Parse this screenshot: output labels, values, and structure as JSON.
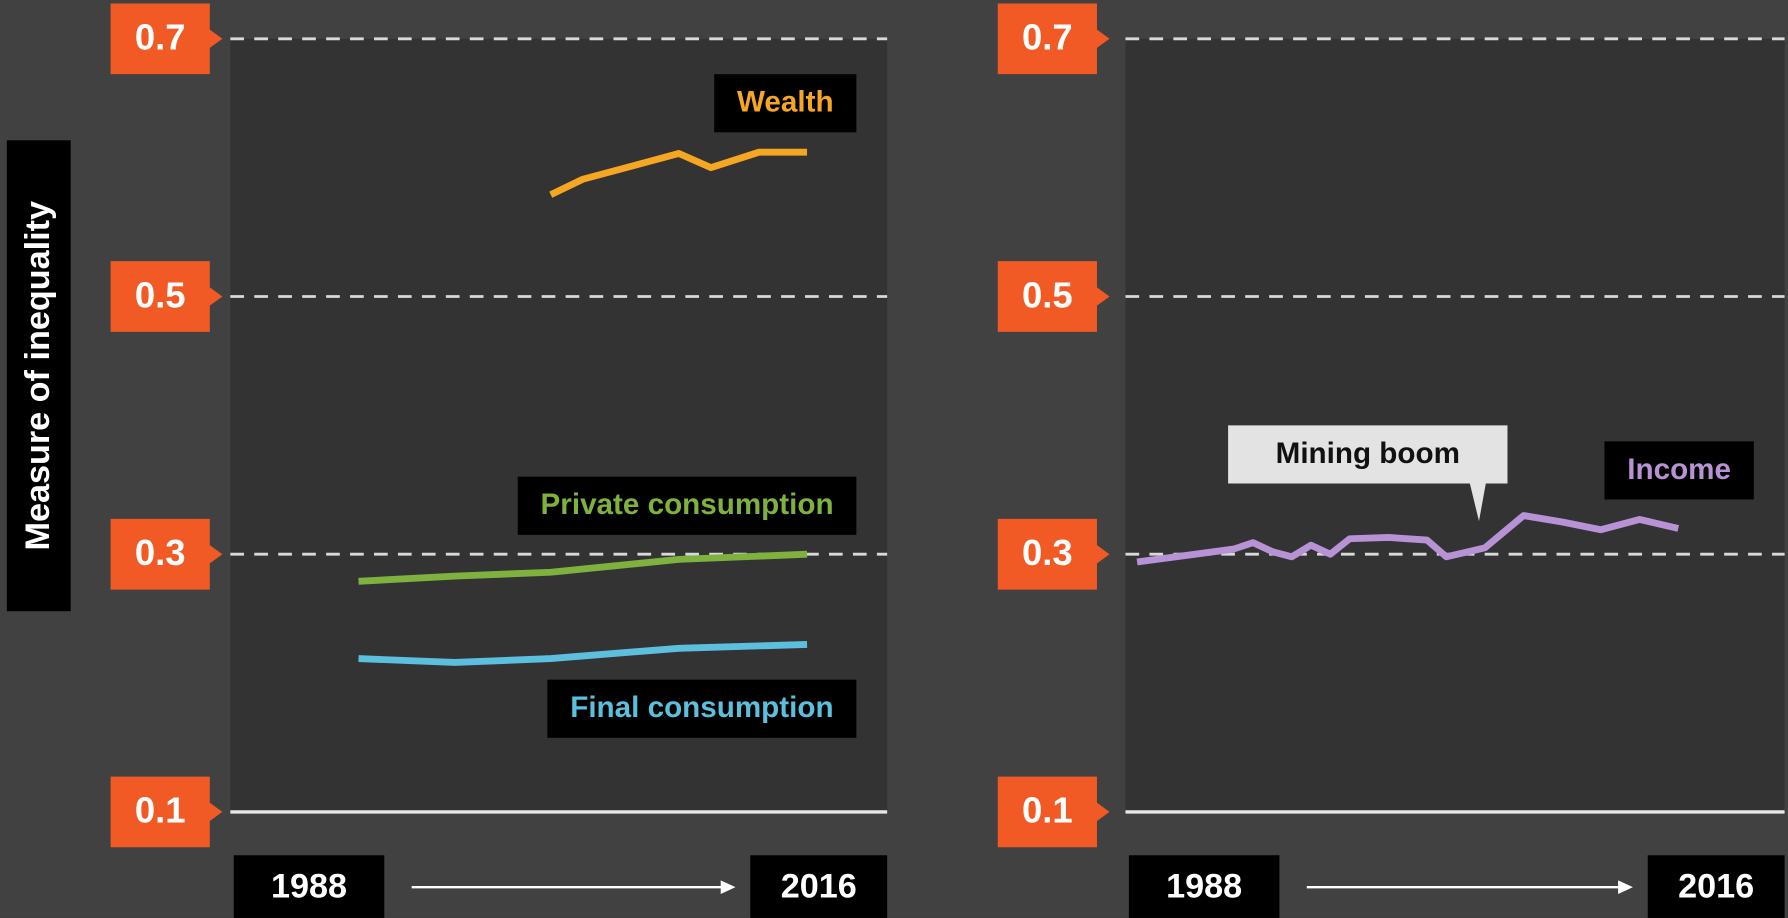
{
  "chart_data": [
    {
      "type": "line",
      "ylabel": "Measure of inequality",
      "xlim": [
        1980,
        2021
      ],
      "ylim": [
        0.1,
        0.7
      ],
      "xticks": [
        1988,
        2016
      ],
      "yticks": [
        0.1,
        0.3,
        0.5,
        0.7
      ],
      "grid": true,
      "series": [
        {
          "name": "Wealth",
          "color": "#f5a623",
          "x": [
            2000,
            2002,
            2008,
            2010,
            2013,
            2016
          ],
          "values": [
            0.579,
            0.591,
            0.611,
            0.6,
            0.612,
            0.612
          ]
        },
        {
          "name": "Private consumption",
          "color": "#7fb13f",
          "x": [
            1988,
            1994,
            2000,
            2008,
            2016
          ],
          "values": [
            0.279,
            0.283,
            0.286,
            0.296,
            0.3
          ]
        },
        {
          "name": "Final consumption",
          "color": "#5bbfdd",
          "x": [
            1988,
            1994,
            2000,
            2008,
            2016
          ],
          "values": [
            0.219,
            0.216,
            0.219,
            0.227,
            0.23
          ]
        }
      ]
    },
    {
      "type": "line",
      "xlim": [
        1987.4,
        2021.5
      ],
      "ylim": [
        0.1,
        0.7
      ],
      "xticks": [
        1988,
        2016
      ],
      "yticks": [
        0.1,
        0.3,
        0.5,
        0.7
      ],
      "grid": true,
      "annotation": "Mining boom",
      "series": [
        {
          "name": "Income",
          "color": "#b792d4",
          "x": [
            1988,
            1993,
            1994,
            1995,
            1996,
            1997,
            1998,
            1999,
            2001,
            2003,
            2004,
            2006,
            2008,
            2010,
            2012,
            2014,
            2016
          ],
          "values": [
            0.294,
            0.304,
            0.309,
            0.302,
            0.298,
            0.307,
            0.3,
            0.312,
            0.313,
            0.311,
            0.298,
            0.305,
            0.33,
            0.325,
            0.319,
            0.327,
            0.32
          ]
        }
      ]
    }
  ]
}
